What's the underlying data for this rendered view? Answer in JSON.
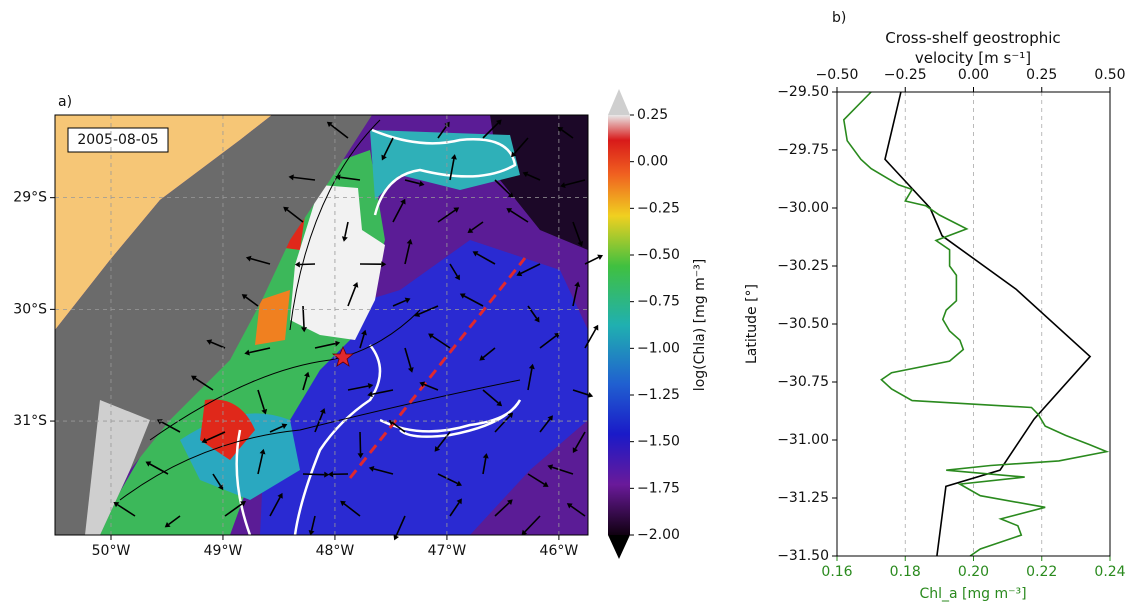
{
  "chart_data": [
    {
      "type": "map",
      "label": "a)",
      "annotation": "2005-08-05",
      "xlim": [
        -50.5,
        -45.74
      ],
      "ylim": [
        -32.02,
        -28.26
      ],
      "xticks": [
        {
          "value": -50,
          "label": "50°W"
        },
        {
          "value": -49,
          "label": "49°W"
        },
        {
          "value": -48,
          "label": "48°W"
        },
        {
          "value": -47,
          "label": "47°W"
        },
        {
          "value": -46,
          "label": "46°W"
        }
      ],
      "yticks": [
        {
          "value": -29,
          "label": "29°S"
        },
        {
          "value": -30,
          "label": "30°S"
        },
        {
          "value": -31,
          "label": "31°S"
        }
      ],
      "grid": true,
      "colorbar": {
        "label": "log(Chla) [mg m⁻³]",
        "clim": [
          -2,
          0.25
        ],
        "ticks": [
          0.25,
          {
            "value": 0,
            "label": "0.00"
          },
          {
            "value": -0.25,
            "label": "−0.25"
          },
          {
            "value": -0.5,
            "label": "−0.50"
          },
          {
            "value": -0.75,
            "label": "−0.75"
          },
          {
            "value": -1,
            "label": "−1.00"
          },
          {
            "value": -1.25,
            "label": "−1.25"
          },
          {
            "value": -1.5,
            "label": "−1.50"
          },
          {
            "value": -1.75,
            "label": "−1.75"
          },
          {
            "value": -2,
            "label": "−2.00"
          }
        ]
      }
    },
    {
      "type": "profile",
      "label": "b)",
      "title": "Cross-shelf geostrophic velocity [m s⁻¹]",
      "ylabel": "Latitude [°]",
      "xlabel": "Chl_a [mg m⁻³]",
      "xlabel_color": "#2a8a1e",
      "ylim": [
        -31.5,
        -29.5
      ],
      "yticks": [
        {
          "value": -29.5,
          "label": "−29.50"
        },
        {
          "value": -29.75,
          "label": "−29.75"
        },
        {
          "value": -30,
          "label": "−30.00"
        },
        {
          "value": -30.25,
          "label": "−30.25"
        },
        {
          "value": -30.5,
          "label": "−30.50"
        },
        {
          "value": -30.75,
          "label": "−30.75"
        },
        {
          "value": -31,
          "label": "−31.00"
        },
        {
          "value": -31.25,
          "label": "−31.25"
        },
        {
          "value": -31.5,
          "label": "−31.50"
        }
      ],
      "xlim": [
        0.16,
        0.24
      ],
      "xticks": [
        0.16,
        0.18,
        {
          "value": 0.2,
          "label": "0.20"
        },
        0.22,
        0.24
      ],
      "x2lim": [
        -0.5,
        0.5
      ],
      "x2ticks": [
        {
          "value": -0.5,
          "label": "−0.50"
        },
        {
          "value": -0.25,
          "label": "−0.25"
        },
        {
          "value": 0,
          "label": "0.00"
        },
        0.25,
        {
          "value": 0.5,
          "label": "0.50"
        }
      ],
      "grid": true,
      "series": [
        {
          "color": "#000000",
          "axis": "x2",
          "y": [
            -29.5,
            -29.79,
            -30.0,
            -30.12,
            -30.35,
            -30.64,
            -30.91,
            -31.13,
            -31.2,
            -31.5
          ],
          "values": [
            -0.266,
            -0.324,
            -0.159,
            -0.115,
            0.156,
            0.427,
            0.222,
            0.097,
            -0.101,
            -0.134
          ]
        },
        {
          "color": "#2a8a1e",
          "y": [
            -29.5,
            -29.62,
            -29.71,
            -29.79,
            -29.83,
            -29.9,
            -29.92,
            -29.97,
            -29.99,
            -30.03,
            -30.09,
            -30.14,
            -30.18,
            -30.25,
            -30.29,
            -30.35,
            -30.4,
            -30.44,
            -30.48,
            -30.53,
            -30.57,
            -30.61,
            -30.66,
            -30.71,
            -30.74,
            -30.78,
            -30.83,
            -30.86,
            -30.89,
            -30.94,
            -30.98,
            -31.02,
            -31.05,
            -31.09,
            -31.11,
            -31.13,
            -31.16,
            -31.19,
            -31.24,
            -31.29,
            -31.34,
            -31.37,
            -31.41,
            -31.47,
            -31.5
          ],
          "values": [
            0.17,
            0.162,
            0.163,
            0.167,
            0.17,
            0.178,
            0.182,
            0.18,
            0.186,
            0.19,
            0.198,
            0.189,
            0.193,
            0.193,
            0.195,
            0.195,
            0.195,
            0.192,
            0.191,
            0.193,
            0.196,
            0.197,
            0.193,
            0.176,
            0.173,
            0.176,
            0.182,
            0.217,
            0.219,
            0.221,
            0.227,
            0.234,
            0.239,
            0.225,
            0.205,
            0.192,
            0.215,
            0.196,
            0.202,
            0.221,
            0.208,
            0.213,
            0.214,
            0.202,
            0.199
          ]
        }
      ]
    }
  ]
}
